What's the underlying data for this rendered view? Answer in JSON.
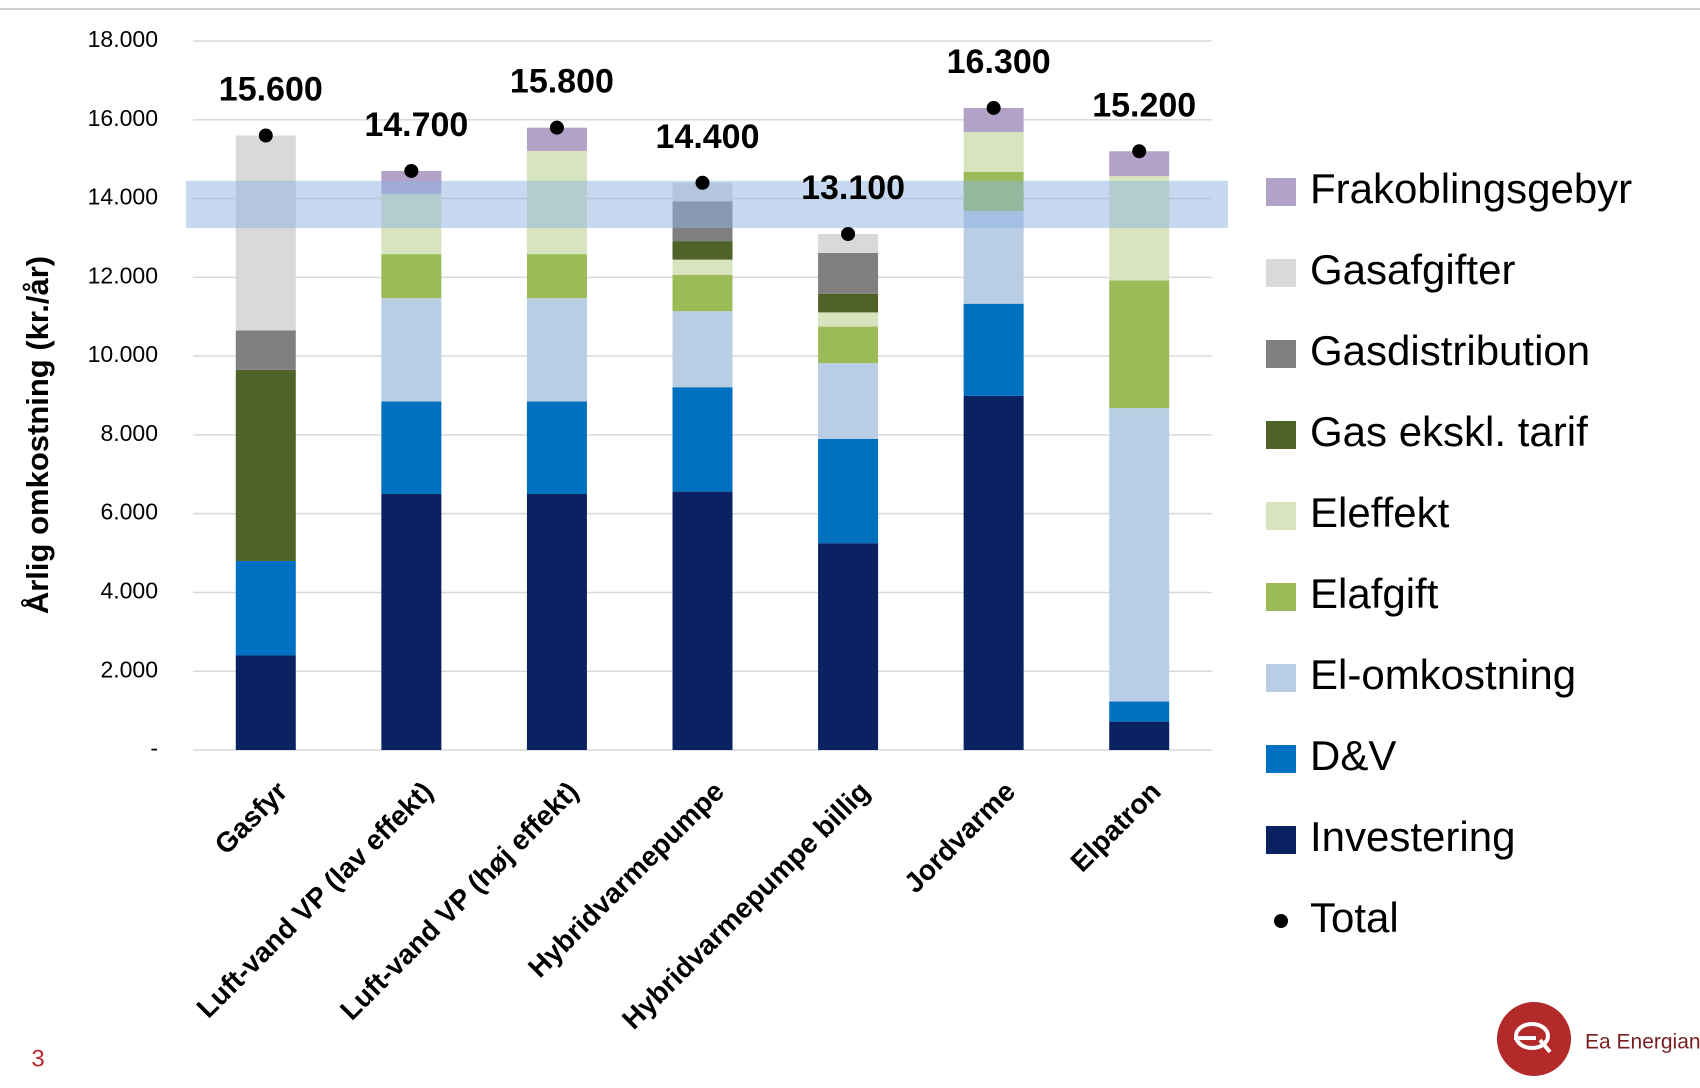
{
  "chart_data": {
    "type": "stacked_bar",
    "y_axis_label": "Årlig omkostning (kr./år)",
    "categories": [
      "Gasfyr",
      "Luft-vand VP (lav effekt)",
      "Luft-vand VP (høj effekt)",
      "Hybridvarmepumpe",
      "Hybridvarmepumpe billig",
      "Jordvarme",
      "Elpatron"
    ],
    "series": [
      {
        "name": "Investering",
        "color": "#0b2262",
        "values": [
          2400,
          6500,
          6500,
          6560,
          5250,
          8990,
          720
        ]
      },
      {
        "name": "D&V",
        "color": "#0070c0",
        "values": [
          2400,
          2350,
          2350,
          2650,
          2650,
          2340,
          510
        ]
      },
      {
        "name": "El-omkostning",
        "color": "#b9cde5",
        "values": [
          0,
          2620,
          2620,
          1930,
          1920,
          2350,
          7450
        ]
      },
      {
        "name": "Elafgift",
        "color": "#9bbb59",
        "values": [
          0,
          1120,
          1120,
          920,
          930,
          1000,
          3240
        ]
      },
      {
        "name": "Eleffekt",
        "color": "#d7e4bd",
        "values": [
          0,
          1530,
          2620,
          390,
          360,
          1010,
          2650
        ]
      },
      {
        "name": "Gas ekskl. tarif",
        "color": "#4f6228",
        "values": [
          4850,
          0,
          0,
          470,
          470,
          0,
          0
        ]
      },
      {
        "name": "Gasdistribution",
        "color": "#808080",
        "values": [
          1000,
          0,
          0,
          1010,
          1040,
          0,
          0
        ]
      },
      {
        "name": "Gasafgifter",
        "color": "#d9d9d9",
        "values": [
          4950,
          0,
          0,
          470,
          480,
          0,
          0
        ]
      },
      {
        "name": "Frakoblingsgebyr",
        "color": "#b3a2c7",
        "values": [
          0,
          580,
          590,
          0,
          0,
          610,
          630
        ]
      }
    ],
    "total": {
      "name": "Total",
      "color": "#000000",
      "values": [
        15600,
        14700,
        15800,
        14400,
        13100,
        16300,
        15200
      ],
      "value_labels": [
        "15.600",
        "14.700",
        "15.800",
        "14.400",
        "13.100",
        "16.300",
        "15.200"
      ]
    },
    "highlight_band": [
      13250,
      14450
    ],
    "ylim": [
      0,
      18000
    ],
    "yticks": [
      {
        "value": 0,
        "label": "-"
      },
      {
        "value": 2000,
        "label": "2.000"
      },
      {
        "value": 4000,
        "label": "4.000"
      },
      {
        "value": 6000,
        "label": "6.000"
      },
      {
        "value": 8000,
        "label": "8.000"
      },
      {
        "value": 10000,
        "label": "10.000"
      },
      {
        "value": 12000,
        "label": "12.000"
      },
      {
        "value": 14000,
        "label": "14.000"
      },
      {
        "value": 16000,
        "label": "16.000"
      },
      {
        "value": 18000,
        "label": "18.000"
      }
    ],
    "grid": true,
    "legend_position": "right"
  },
  "footer": {
    "page_number": "3",
    "logo_text": "Ea Energian"
  }
}
